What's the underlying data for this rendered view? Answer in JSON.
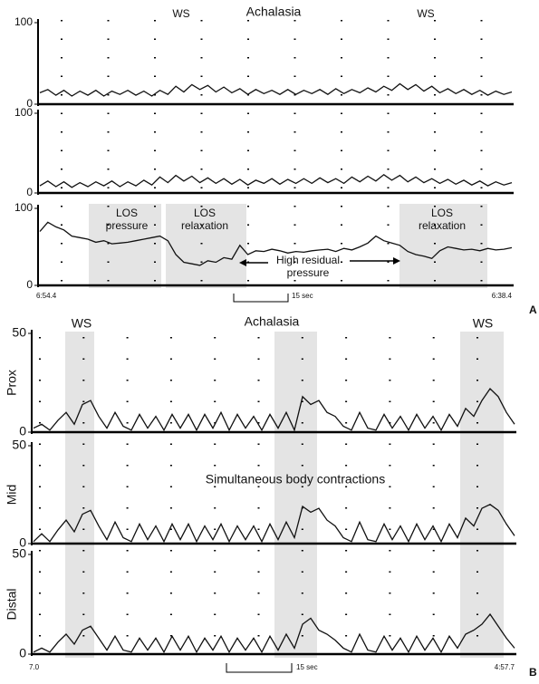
{
  "panel_a": {
    "letter": "A",
    "title": "Achalasia",
    "ws": [
      "WS",
      "WS"
    ],
    "los_pressure": [
      "LOS",
      "pressure"
    ],
    "los_relaxation_1": [
      "LOS",
      "relaxation"
    ],
    "los_relaxation_2": [
      "LOS",
      "relaxation"
    ],
    "residual": [
      "High residual",
      "pressure"
    ],
    "time_start": "6:54.4",
    "time_end": "6:38.4",
    "scale": "15 sec"
  },
  "panel_b": {
    "letter": "B",
    "title": "Achalasia",
    "ws": [
      "WS",
      "WS"
    ],
    "note": "Simultaneous body contractions",
    "time_start": "7.0",
    "time_end": "4:57.7",
    "scale": "15 sec"
  },
  "chart_data": [
    {
      "type": "line",
      "ylim": [
        0,
        100
      ],
      "yticks": [
        0,
        100
      ],
      "values": [
        14,
        18,
        11,
        17,
        10,
        16,
        11,
        17,
        10,
        16,
        12,
        17,
        11,
        16,
        10,
        17,
        12,
        22,
        15,
        24,
        18,
        23,
        15,
        21,
        14,
        19,
        12,
        18,
        13,
        17,
        12,
        18,
        12,
        17,
        13,
        18,
        12,
        19,
        13,
        18,
        14,
        20,
        15,
        22,
        17,
        25,
        18,
        24,
        16,
        22,
        14,
        19,
        13,
        18,
        12,
        17,
        11,
        16,
        12,
        15
      ]
    },
    {
      "type": "line",
      "ylim": [
        0,
        100
      ],
      "yticks": [
        0,
        100
      ],
      "values": [
        9,
        15,
        8,
        14,
        7,
        13,
        8,
        14,
        9,
        15,
        8,
        14,
        9,
        16,
        10,
        20,
        13,
        22,
        15,
        21,
        13,
        19,
        12,
        18,
        11,
        17,
        10,
        16,
        12,
        18,
        11,
        17,
        12,
        18,
        12,
        19,
        13,
        18,
        12,
        20,
        14,
        21,
        15,
        23,
        16,
        22,
        14,
        20,
        13,
        18,
        12,
        17,
        11,
        16,
        10,
        15,
        9,
        14,
        10,
        13
      ]
    },
    {
      "type": "line",
      "ylim": [
        0,
        100
      ],
      "yticks": [
        0,
        100
      ],
      "values": [
        70,
        82,
        76,
        72,
        64,
        62,
        60,
        56,
        58,
        54,
        55,
        56,
        58,
        60,
        62,
        64,
        58,
        40,
        30,
        28,
        26,
        32,
        30,
        36,
        34,
        52,
        40,
        45,
        44,
        47,
        45,
        42,
        44,
        43,
        45,
        46,
        47,
        44,
        48,
        46,
        50,
        55,
        64,
        58,
        55,
        52,
        44,
        40,
        38,
        35,
        45,
        50,
        48,
        46,
        47,
        45,
        48,
        46,
        47,
        49
      ]
    },
    {
      "type": "line",
      "ylim": [
        0,
        50
      ],
      "yticks": [
        0,
        50
      ],
      "ylabel": "Prox",
      "values": [
        2,
        4,
        1,
        6,
        10,
        4,
        14,
        16,
        8,
        2,
        10,
        3,
        1,
        9,
        2,
        8,
        1,
        9,
        2,
        9,
        1,
        9,
        2,
        10,
        1,
        9,
        2,
        8,
        1,
        9,
        2,
        10,
        1,
        18,
        14,
        16,
        10,
        8,
        3,
        1,
        10,
        2,
        1,
        9,
        2,
        8,
        1,
        9,
        2,
        8,
        1,
        9,
        3,
        12,
        8,
        16,
        22,
        18,
        10,
        4
      ]
    },
    {
      "type": "line",
      "ylim": [
        0,
        50
      ],
      "yticks": [
        0,
        50
      ],
      "ylabel": "Mid",
      "values": [
        1,
        5,
        1,
        7,
        12,
        6,
        15,
        17,
        9,
        2,
        11,
        3,
        1,
        10,
        2,
        9,
        1,
        10,
        2,
        10,
        1,
        9,
        2,
        10,
        1,
        9,
        2,
        9,
        1,
        10,
        2,
        11,
        3,
        19,
        16,
        18,
        12,
        9,
        3,
        1,
        11,
        2,
        1,
        10,
        2,
        9,
        1,
        10,
        2,
        9,
        1,
        10,
        3,
        13,
        9,
        18,
        20,
        17,
        10,
        4
      ]
    },
    {
      "type": "line",
      "ylim": [
        0,
        50
      ],
      "yticks": [
        0,
        50
      ],
      "ylabel": "Distal",
      "values": [
        1,
        3,
        1,
        6,
        10,
        5,
        12,
        14,
        8,
        2,
        9,
        2,
        1,
        8,
        2,
        8,
        1,
        9,
        2,
        9,
        1,
        8,
        2,
        9,
        1,
        8,
        2,
        8,
        1,
        9,
        2,
        10,
        3,
        15,
        18,
        12,
        10,
        7,
        3,
        1,
        10,
        2,
        1,
        9,
        2,
        8,
        1,
        9,
        2,
        8,
        1,
        9,
        3,
        10,
        12,
        15,
        20,
        14,
        8,
        3
      ]
    }
  ]
}
